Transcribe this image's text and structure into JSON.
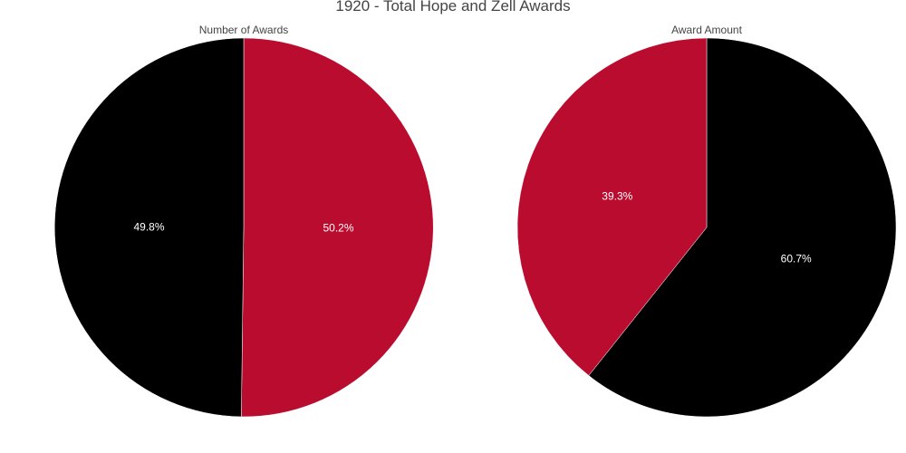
{
  "chart_data": {
    "title": "1920 - Total Hope and Zell Awards",
    "charts": [
      {
        "type": "pie",
        "subtitle": "Number of Awards",
        "slices": [
          {
            "value": 50.2,
            "label": "50.2%",
            "color": "#ba0c2f"
          },
          {
            "value": 49.8,
            "label": "49.8%",
            "color": "#000000"
          }
        ]
      },
      {
        "type": "pie",
        "subtitle": "Award Amount",
        "slices": [
          {
            "value": 60.7,
            "label": "60.7%",
            "color": "#000000"
          },
          {
            "value": 39.3,
            "label": "39.3%",
            "color": "#ba0c2f"
          }
        ]
      }
    ]
  }
}
